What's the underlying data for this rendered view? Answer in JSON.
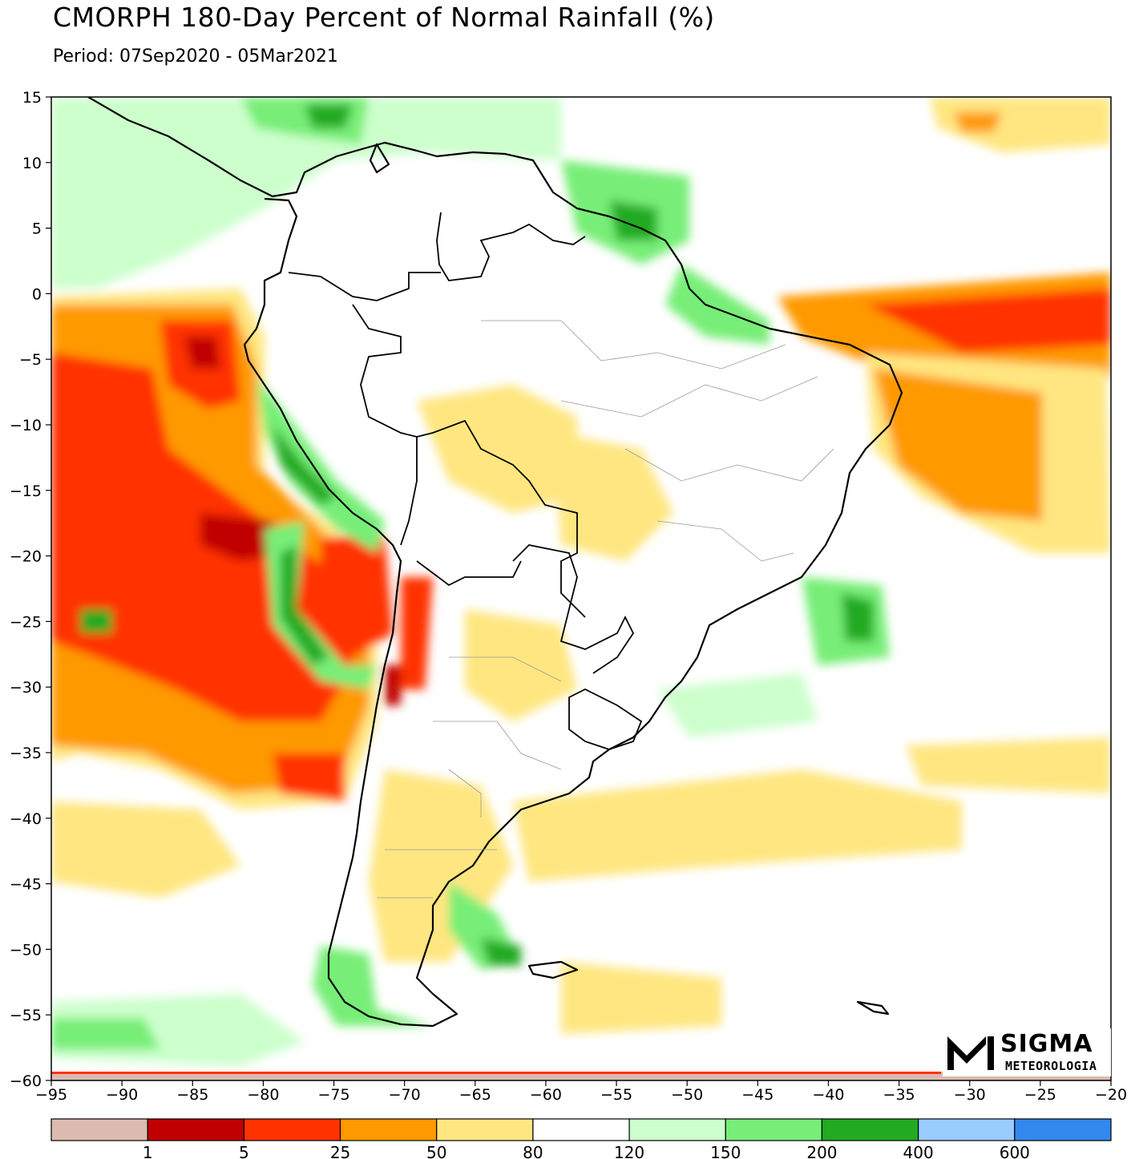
{
  "header": {
    "title": "CMORPH 180-Day Percent of Normal Rainfall (%)",
    "period": "Period: 07Sep2020 - 05Mar2021"
  },
  "map": {
    "region": "South America",
    "lon_range": [
      -95,
      -20
    ],
    "lat_range": [
      -60,
      15
    ],
    "x_ticks": [
      "-95",
      "-90",
      "-85",
      "-80",
      "-75",
      "-70",
      "-65",
      "-60",
      "-55",
      "-50",
      "-45",
      "-40",
      "-35",
      "-30",
      "-25",
      "-20"
    ],
    "y_ticks": [
      "15",
      "10",
      "5",
      "0",
      "-5",
      "-10",
      "-15",
      "-20",
      "-25",
      "-30",
      "-35",
      "-40",
      "-45",
      "-50",
      "-55",
      "-60"
    ]
  },
  "colorbar": {
    "colors": [
      "#dcbab0",
      "#c00000",
      "#ff3300",
      "#ff9900",
      "#ffe680",
      "#ffffff",
      "#ccffcc",
      "#77ee77",
      "#22aa22",
      "#99ccff",
      "#3388ee"
    ],
    "labels": [
      "1",
      "5",
      "25",
      "50",
      "80",
      "120",
      "150",
      "200",
      "400",
      "600"
    ]
  },
  "logo": {
    "name": "SIGMA",
    "subtitle": "METEOROLOGIA"
  }
}
